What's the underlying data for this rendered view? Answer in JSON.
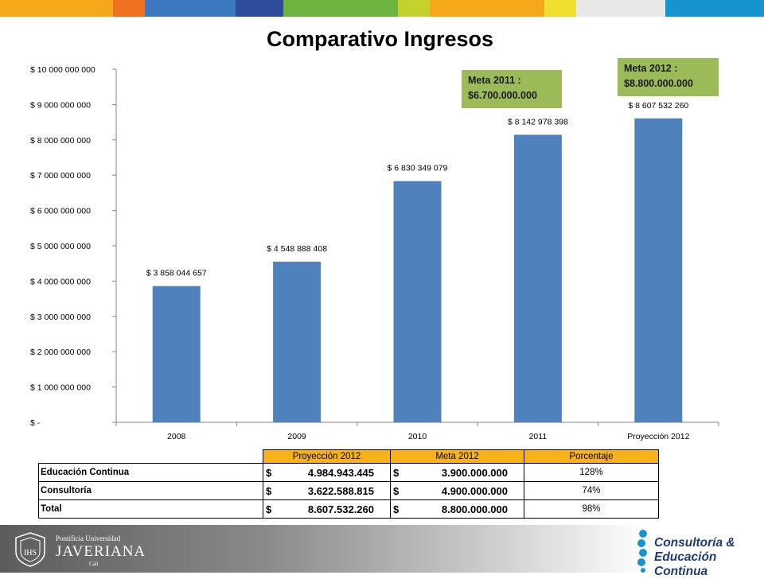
{
  "colors": {
    "bar": "#4f81bd",
    "callout": "#9bbb59",
    "table_header": "#f7b21a",
    "strip": [
      "#f6a81b",
      "#ee7020",
      "#3c78c0",
      "#2e4c9a",
      "#6db33f",
      "#c4d12d",
      "#f6a81b",
      "#efe02f",
      "#e8e8e8",
      "#1793d1"
    ]
  },
  "title": "Comparativo Ingresos",
  "chart_data": {
    "type": "bar",
    "categories": [
      "2008",
      "2009",
      "2010",
      "2011",
      "Proyección 2012"
    ],
    "values": [
      3858044657,
      4548888408,
      6830349079,
      8142978398,
      8607532260
    ],
    "data_labels": [
      "$ 3 858 044 657",
      "$ 4 548 888 408",
      "$ 6 830 349 079",
      "$ 8 142 978 398",
      "$ 8 607 532 260"
    ],
    "ylim": [
      0,
      10000000000
    ],
    "y_ticks": [
      0,
      1000000000,
      2000000000,
      3000000000,
      4000000000,
      5000000000,
      6000000000,
      7000000000,
      8000000000,
      9000000000,
      10000000000
    ],
    "y_tick_labels": [
      "$ -",
      "$ 1 000 000 000",
      "$ 2 000 000 000",
      "$ 3 000 000 000",
      "$ 4 000 000 000",
      "$ 5 000 000 000",
      "$ 6 000 000 000",
      "$ 7 000 000 000",
      "$ 8 000 000 000",
      "$ 9 000 000 000",
      "$ 10 000 000 000"
    ],
    "grid": false,
    "legend": "none",
    "annotations": [
      {
        "line1": "Meta 2011 :",
        "line2": "$6.700.000.000"
      },
      {
        "line1": "Meta 2012 :",
        "line2": "$8.800.000.000"
      }
    ]
  },
  "table": {
    "headers": [
      "Proyección 2012",
      "Meta 2012",
      "Porcentaje"
    ],
    "rows": [
      {
        "label": "Educación Continua",
        "proj": "4.984.943.445",
        "meta": "3.900.000.000",
        "pct": "128%"
      },
      {
        "label": "Consultoría",
        "proj": "3.622.588.815",
        "meta": "4.900.000.000",
        "pct": "74%"
      },
      {
        "label": "Total",
        "proj": "8.607.532.260",
        "meta": "8.800.000.000",
        "pct": "98%"
      }
    ],
    "currency": "$"
  },
  "footer": {
    "university_line1": "Pontificia Universidad",
    "university_line2": "JAVERIANA",
    "university_line3": "Cali",
    "brand_line1": "Consultoría &",
    "brand_line2": "Educación Continua"
  }
}
